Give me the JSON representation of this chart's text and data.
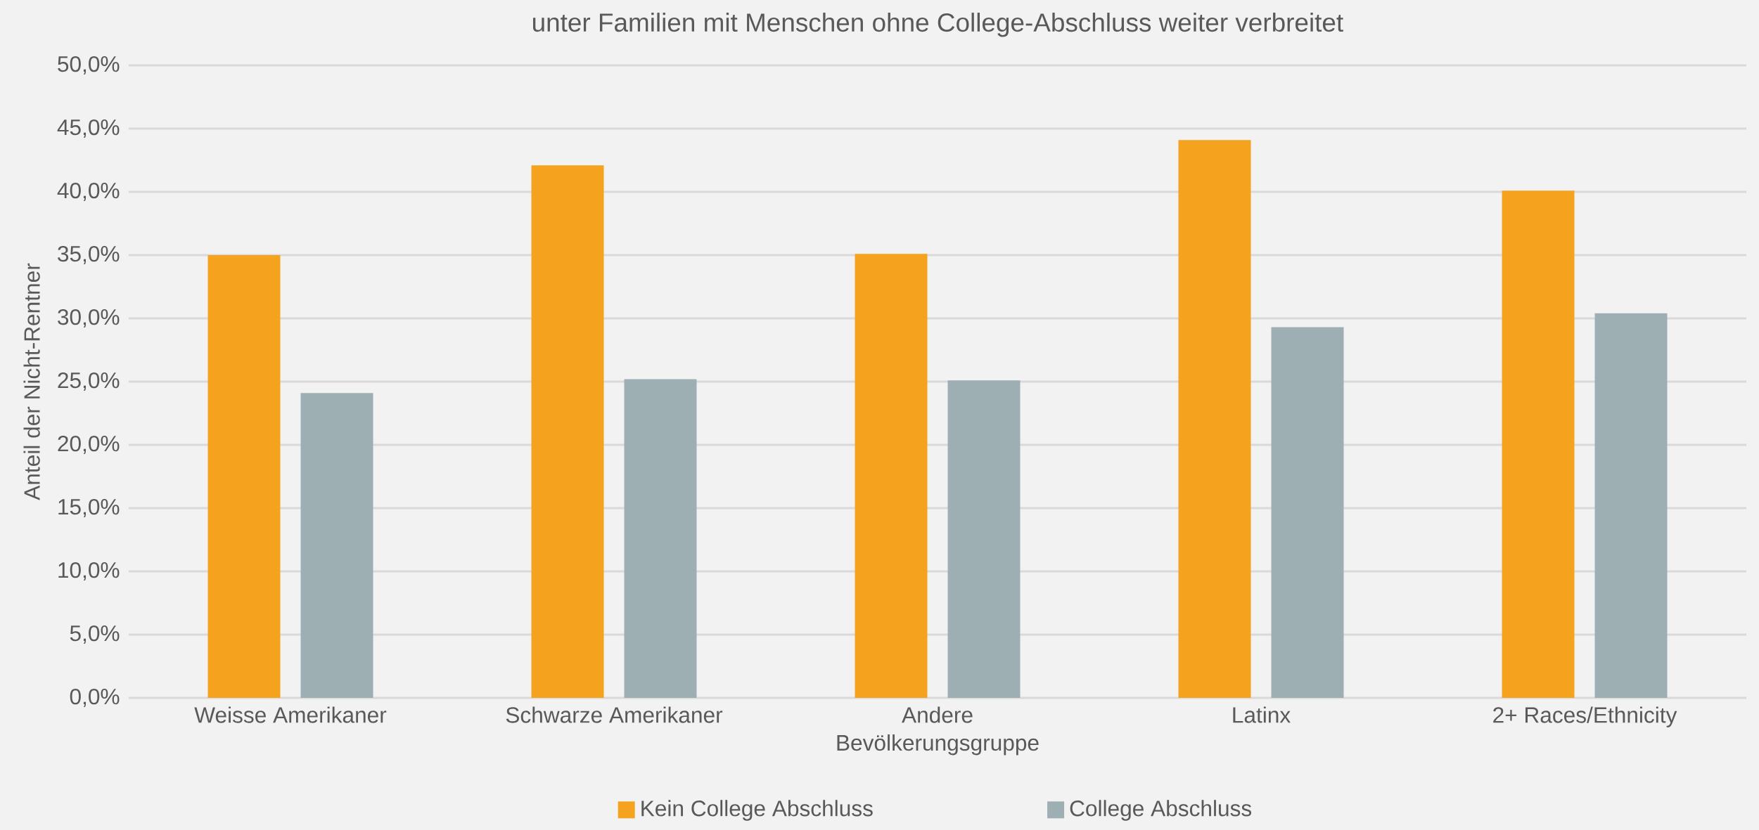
{
  "chart_data": {
    "type": "bar",
    "title": "unter Familien mit Menschen ohne College-Abschluss weiter verbreitet",
    "xlabel": "Bevölkerungsgruppe",
    "ylabel": "Anteil der Nicht-Rentner",
    "categories": [
      "Weisse Amerikaner",
      "Schwarze Amerikaner",
      "Andere",
      "Latinx",
      "2+ Races/Ethnicity"
    ],
    "series": [
      {
        "name": "Kein College Abschluss",
        "color": "#f5a31f",
        "values": [
          35.0,
          42.1,
          35.1,
          44.1,
          40.1
        ]
      },
      {
        "name": "College Abschluss",
        "color": "#9eafb4",
        "values": [
          24.1,
          25.2,
          25.1,
          29.3,
          30.4
        ]
      }
    ],
    "ylim": [
      0,
      50
    ],
    "yticks": [
      {
        "value": 0,
        "label": "0,0%"
      },
      {
        "value": 5,
        "label": "5,0%"
      },
      {
        "value": 10,
        "label": "10,0%"
      },
      {
        "value": 15,
        "label": "15,0%"
      },
      {
        "value": 20,
        "label": "20,0%"
      },
      {
        "value": 25,
        "label": "25,0%"
      },
      {
        "value": 30,
        "label": "30,0%"
      },
      {
        "value": 35,
        "label": "35,0%"
      },
      {
        "value": 40,
        "label": "40,0%"
      },
      {
        "value": 45,
        "label": "45,0%"
      },
      {
        "value": 50,
        "label": "50,0%"
      }
    ],
    "grid": "y",
    "legend": "bottom"
  }
}
